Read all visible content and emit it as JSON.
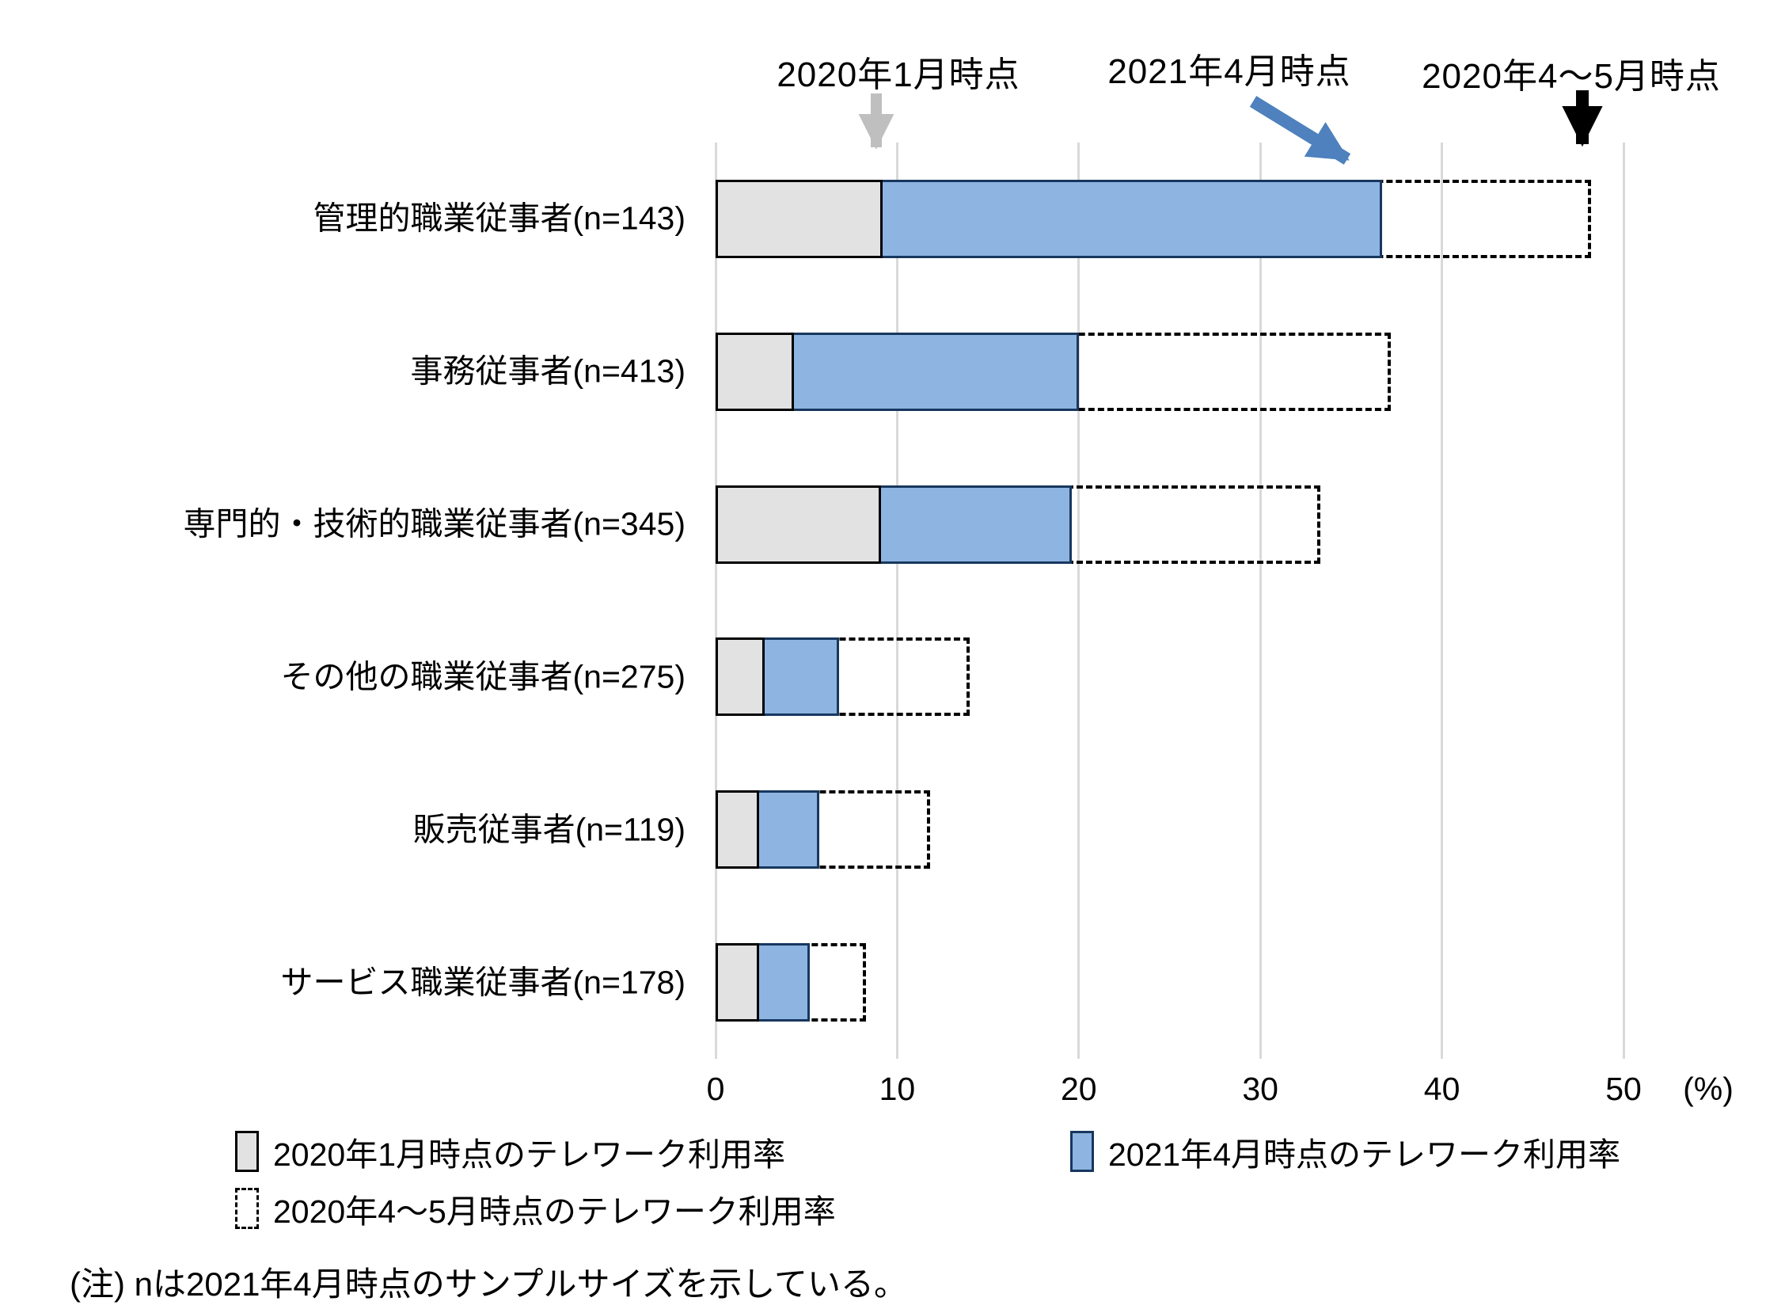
{
  "chart_data": {
    "type": "bar",
    "orientation": "horizontal",
    "title": "",
    "xlabel": "",
    "ylabel": "",
    "xlim": [
      0,
      50
    ],
    "x_ticks": [
      0,
      10,
      20,
      30,
      40,
      50
    ],
    "x_axis_unit_label": "(%)",
    "gridlines": "vertical",
    "categories": [
      "管理的職業従事者(n=143)",
      "事務従事者(n=413)",
      "専門的・技術的職業従事者(n=345)",
      "その他の職業従事者(n=275)",
      "販売従事者(n=119)",
      "サービス職業従事者(n=178)"
    ],
    "series": [
      {
        "name": "2020年1月時点のテレワーク利用率",
        "style": "gray-solid",
        "values": [
          9.2,
          4.3,
          9.1,
          2.7,
          2.4,
          2.4
        ]
      },
      {
        "name": "2021年4月時点のテレワーク利用率",
        "style": "blue-solid",
        "values": [
          36.7,
          20.0,
          19.6,
          6.8,
          5.7,
          5.2
        ]
      },
      {
        "name": "2020年4〜5月時点のテレワーク利用率",
        "style": "dashed-outline",
        "values": [
          48.2,
          37.2,
          33.3,
          14.0,
          11.8,
          8.3
        ]
      }
    ],
    "annotations": [
      {
        "text": "2020年1月時点",
        "arrow": "gray-down"
      },
      {
        "text": "2021年4月時点",
        "arrow": "blue-diagonal"
      },
      {
        "text": "2020年4〜5月時点",
        "arrow": "black-down"
      }
    ],
    "note": "(注) nは2021年4月時点のサンプルサイズを示している。"
  },
  "legend": {
    "items": [
      {
        "label": "2020年1月時点のテレワーク利用率",
        "swatch": "gray-solid"
      },
      {
        "label": "2021年4月時点のテレワーク利用率",
        "swatch": "blue-solid"
      },
      {
        "label": "2020年4〜5月時点のテレワーク利用率",
        "swatch": "dashed-outline"
      }
    ]
  },
  "colors": {
    "bar_gray_fill": "#E2E2E2",
    "bar_gray_border": "#000000",
    "bar_blue_fill": "#8EB4E2",
    "bar_blue_border": "#17375E",
    "dashed_border": "#000000",
    "gridline": "#D9D9D9",
    "arrow_gray": "#BFBFBF",
    "arrow_blue": "#4E81BD",
    "arrow_black": "#000000"
  }
}
